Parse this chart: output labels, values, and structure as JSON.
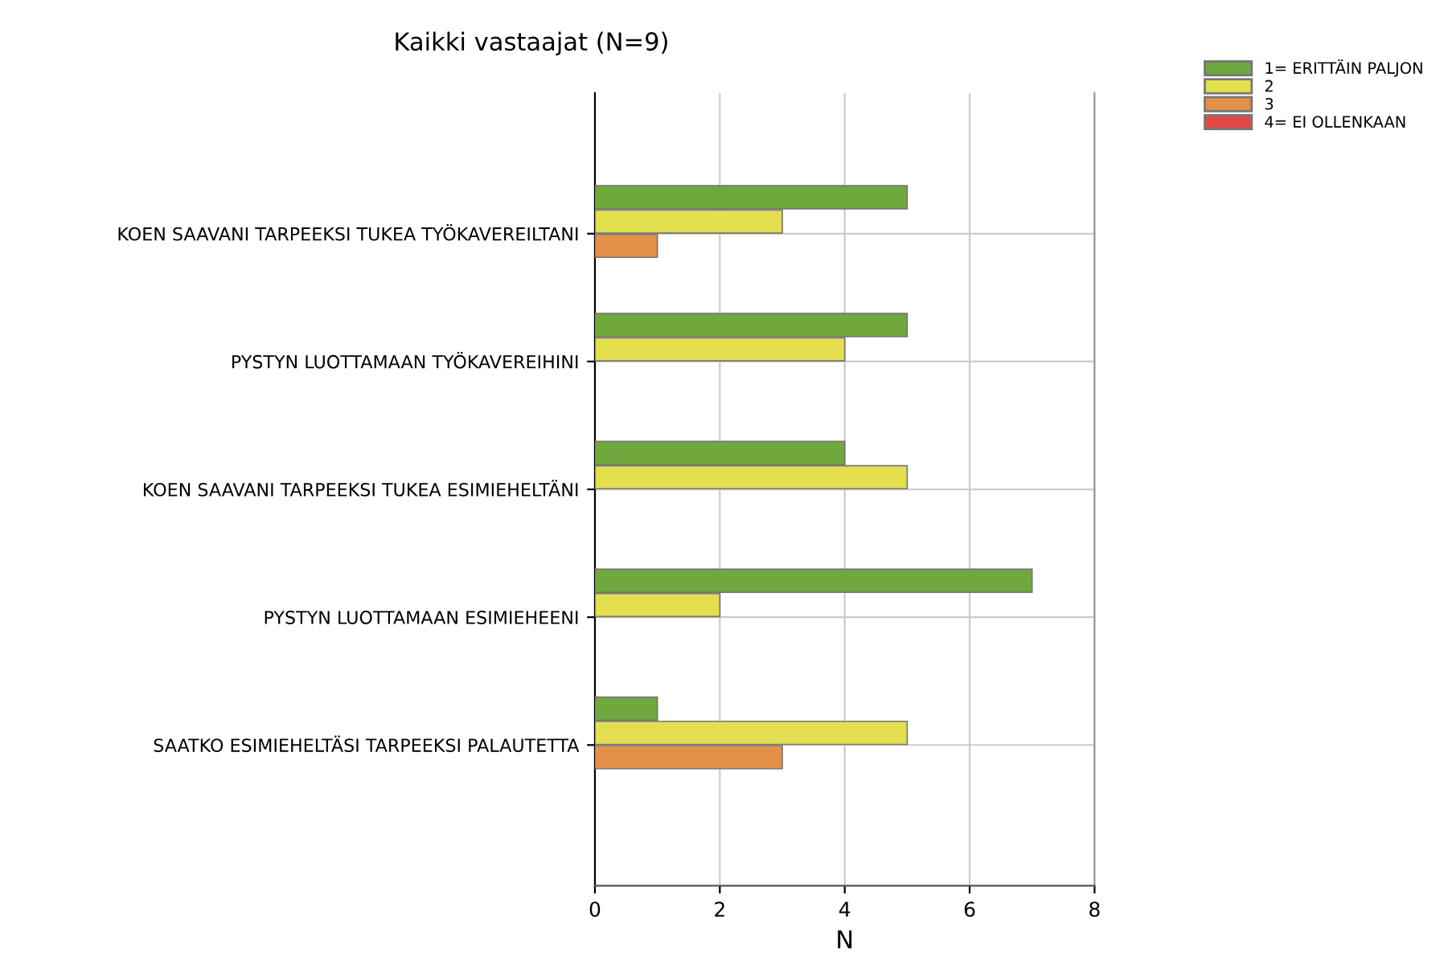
{
  "chart_data": {
    "type": "bar",
    "orientation": "horizontal",
    "title": "Kaikki vastaajat (N=9)",
    "xlabel": "N",
    "categories": [
      "KOEN SAAVANI TARPEEKSI TUKEA TYÖKAVEREILTANI",
      "PYSTYN LUOTTAMAAN TYÖKAVEREIHINI",
      "KOEN SAAVANI TARPEEKSI TUKEA ESIMIEHELTÄNI",
      "PYSTYN LUOTTAMAAN ESIMIEHEENI",
      "SAATKO ESIMIEHELTÄSI TARPEEKSI PALAUTETTA"
    ],
    "series": [
      {
        "name": "1= ERITTÄIN PALJON",
        "color": "#6fa83c",
        "values": [
          5,
          5,
          4,
          7,
          1
        ]
      },
      {
        "name": "2",
        "color": "#e3df4e",
        "values": [
          3,
          4,
          5,
          2,
          5
        ]
      },
      {
        "name": "3",
        "color": "#e39148",
        "values": [
          1,
          0,
          0,
          0,
          3
        ]
      },
      {
        "name": "4= EI OLLENKAAN",
        "color": "#e04848",
        "values": [
          0,
          0,
          0,
          0,
          0
        ]
      }
    ],
    "xlim": [
      0,
      8
    ],
    "xticks": [
      0,
      2,
      4,
      6,
      8
    ],
    "grid": true,
    "legend": "top right"
  }
}
